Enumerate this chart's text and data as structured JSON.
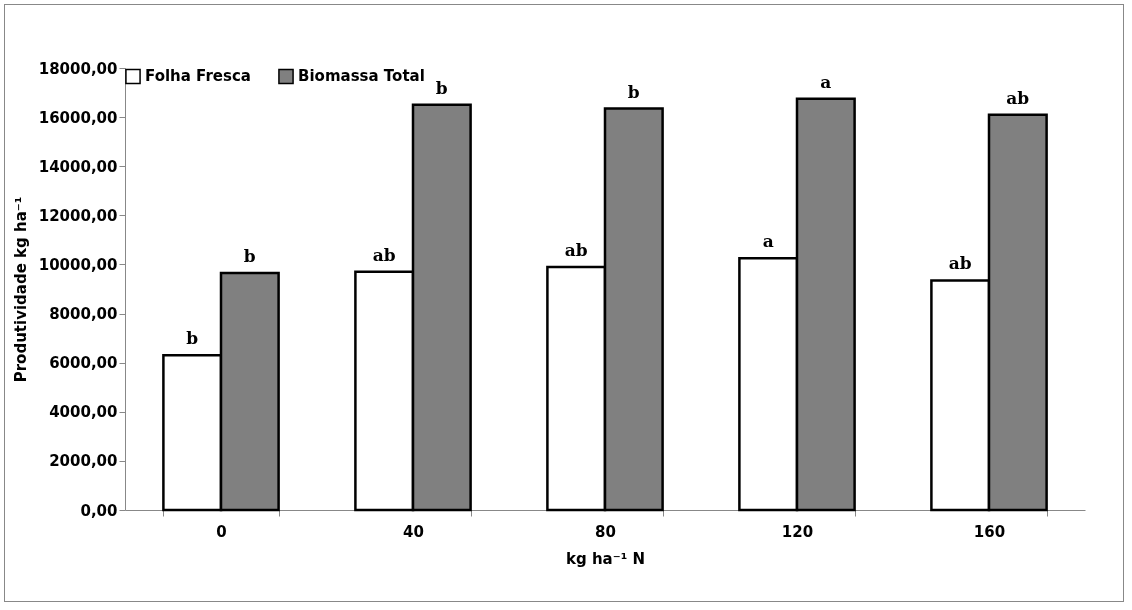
{
  "chart_data": {
    "type": "bar",
    "xlabel": "kg ha⁻¹ N",
    "ylabel": "Produtividade kg ha⁻¹",
    "categories": [
      "0",
      "40",
      "80",
      "120",
      "160"
    ],
    "series": [
      {
        "name": "Folha Fresca",
        "color": "#ffffff",
        "values": [
          6300,
          9700,
          9900,
          10250,
          9350
        ],
        "value_labels": [
          "b",
          "ab",
          "ab",
          "a",
          "ab"
        ]
      },
      {
        "name": "Biomassa Total",
        "color": "#808080",
        "values": [
          9650,
          16500,
          16350,
          16750,
          16100
        ],
        "value_labels": [
          "b",
          "b",
          "b",
          "a",
          "ab"
        ]
      }
    ],
    "ylim": [
      0,
      18000
    ],
    "yticks": [
      {
        "value": 0,
        "label": "0,00"
      },
      {
        "value": 2000,
        "label": "2000,00"
      },
      {
        "value": 4000,
        "label": "4000,00"
      },
      {
        "value": 6000,
        "label": "6000,00"
      },
      {
        "value": 8000,
        "label": "8000,00"
      },
      {
        "value": 10000,
        "label": "10000,00"
      },
      {
        "value": 12000,
        "label": "12000,00"
      },
      {
        "value": 14000,
        "label": "14000,00"
      },
      {
        "value": 16000,
        "label": "16000,00"
      },
      {
        "value": 18000,
        "label": "18000,00"
      }
    ],
    "grid": false,
    "legend": "top left"
  }
}
